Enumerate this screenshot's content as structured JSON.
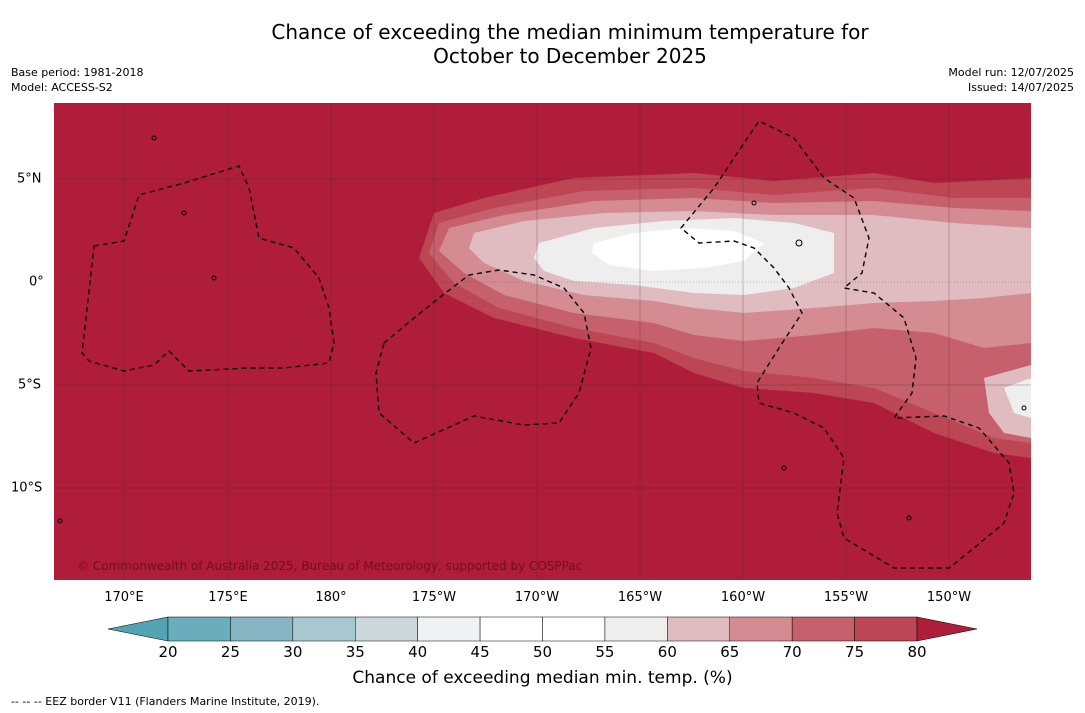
{
  "title_line1": "Chance of exceeding the median minimum temperature for",
  "title_line2": "October to December 2025",
  "meta_left": {
    "base_period": "Base period: 1981-2018",
    "model": "Model: ACCESS-S2"
  },
  "meta_right": {
    "model_run": "Model run: 12/07/2025",
    "issued": "Issued: 14/07/2025"
  },
  "copyright": "© Commonwealth of Australia 2025, Bureau of Meteorology, supported by COSPPac",
  "footnote": "--  --  -- EEZ border V11 (Flanders Marine Institute, 2019).",
  "lon_labels": [
    "170°E",
    "175°E",
    "180°",
    "175°W",
    "170°W",
    "165°W",
    "160°W",
    "155°W",
    "150°W"
  ],
  "lat_labels": [
    "5°N",
    "0°",
    "5°S",
    "10°S"
  ],
  "colorbar": {
    "title": "Chance of exceeding median min. temp. (%)",
    "ticks": [
      "20",
      "25",
      "30",
      "35",
      "40",
      "45",
      "50",
      "55",
      "60",
      "65",
      "70",
      "75",
      "80"
    ],
    "colors": [
      "#6aaebe",
      "#86b5c4",
      "#a8c8cf",
      "#cbd7da",
      "#eef2f5",
      "#ffffff",
      "#ffffff",
      "#eeeeee",
      "#e0bbc0",
      "#d48b91",
      "#c7606d",
      "#bd4654"
    ],
    "low_color": "#52a4b3",
    "high_color": "#b01d3a"
  },
  "map_colors": {
    "above80": "#b01d3a",
    "75_80": "#bd4654",
    "70_75": "#c7606d",
    "65_70": "#d48b91",
    "60_65": "#e0bbc0",
    "55_60": "#eeeeee",
    "50_55": "#ffffff"
  }
}
